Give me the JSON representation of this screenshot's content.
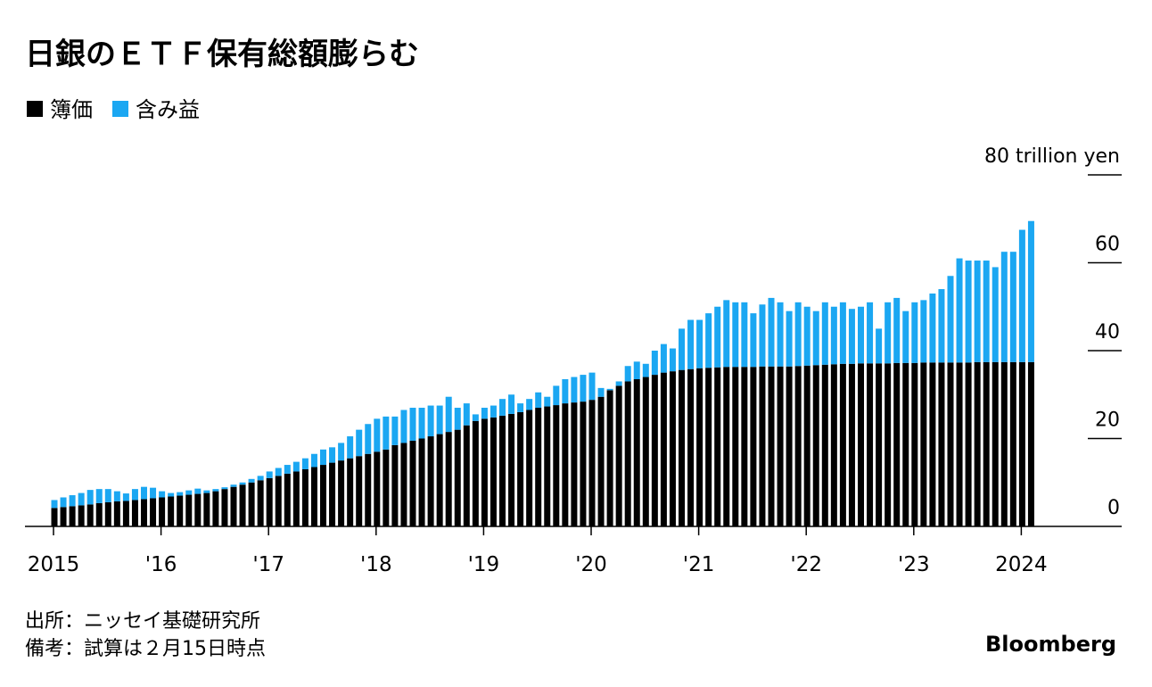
{
  "chart_data": {
    "type": "stacked_bar",
    "title": "日銀のＥＴＦ保有総額膨らむ",
    "notes": [
      "出所：ニッセイ基礎研究所",
      "備考：試算は２月15日時点"
    ],
    "source": "Bloomberg",
    "categories": [
      "2015",
      null,
      null,
      null,
      null,
      null,
      null,
      null,
      null,
      null,
      null,
      null,
      "'16",
      null,
      null,
      null,
      null,
      null,
      null,
      null,
      null,
      null,
      null,
      null,
      "'17",
      null,
      null,
      null,
      null,
      null,
      null,
      null,
      null,
      null,
      null,
      null,
      "'18",
      null,
      null,
      null,
      null,
      null,
      null,
      null,
      null,
      null,
      null,
      null,
      "'19",
      null,
      null,
      null,
      null,
      null,
      null,
      null,
      null,
      null,
      null,
      null,
      "'20",
      null,
      null,
      null,
      null,
      null,
      null,
      null,
      null,
      null,
      null,
      null,
      "'21",
      null,
      null,
      null,
      null,
      null,
      null,
      null,
      null,
      null,
      null,
      null,
      "'22",
      null,
      null,
      null,
      null,
      null,
      null,
      null,
      null,
      null,
      null,
      null,
      "'23",
      null,
      null,
      null,
      null,
      null,
      null,
      null,
      null,
      null,
      null,
      null,
      "2024",
      null
    ],
    "series": [
      {
        "name": "簿価",
        "color": "#000000",
        "values": [
          4.2,
          4.4,
          4.6,
          4.8,
          5.0,
          5.3,
          5.5,
          5.7,
          5.8,
          6.0,
          6.2,
          6.4,
          6.6,
          6.8,
          7.0,
          7.2,
          7.4,
          7.6,
          8.0,
          8.5,
          9.0,
          9.5,
          10.0,
          10.5,
          11.0,
          11.5,
          12.0,
          12.5,
          13.0,
          13.5,
          14.0,
          14.5,
          15.0,
          15.5,
          16.0,
          16.5,
          17.0,
          17.5,
          18.5,
          19.0,
          19.5,
          20.0,
          20.5,
          21.0,
          21.5,
          22.0,
          23.0,
          24.0,
          24.5,
          24.8,
          25.2,
          25.6,
          26.0,
          26.5,
          27.0,
          27.3,
          27.6,
          28.0,
          28.2,
          28.4,
          28.8,
          29.5,
          31.0,
          32.0,
          33.0,
          33.5,
          34.0,
          34.5,
          35.0,
          35.3,
          35.6,
          35.8,
          36.0,
          36.1,
          36.2,
          36.3,
          36.3,
          36.3,
          36.3,
          36.4,
          36.4,
          36.4,
          36.4,
          36.5,
          36.6,
          36.7,
          36.8,
          36.9,
          37.0,
          37.0,
          37.1,
          37.1,
          37.1,
          37.1,
          37.2,
          37.2,
          37.2,
          37.3,
          37.3,
          37.3,
          37.3,
          37.3,
          37.3,
          37.4,
          37.4,
          37.4,
          37.4,
          37.4,
          37.4,
          37.4
        ]
      },
      {
        "name": "含み益",
        "color": "#1ba7f2",
        "values": [
          1.8,
          2.2,
          2.5,
          2.8,
          3.3,
          3.2,
          3.0,
          2.3,
          1.7,
          2.5,
          2.8,
          2.4,
          1.4,
          0.8,
          0.8,
          1.0,
          1.2,
          0.6,
          0.5,
          0.4,
          0.5,
          0.5,
          0.8,
          1.0,
          1.5,
          1.8,
          2.0,
          2.2,
          2.5,
          3.0,
          3.5,
          3.5,
          4.0,
          5.0,
          6.0,
          6.8,
          7.5,
          7.5,
          6.5,
          7.5,
          7.5,
          7.0,
          7.0,
          6.5,
          8.0,
          5.0,
          5.0,
          1.5,
          2.5,
          2.7,
          3.8,
          4.4,
          2.0,
          2.5,
          3.5,
          2.2,
          4.4,
          5.5,
          5.8,
          6.1,
          6.2,
          2.0,
          0.3,
          1.0,
          3.5,
          4.0,
          3.0,
          5.5,
          6.5,
          5.2,
          9.4,
          11.2,
          11.0,
          12.4,
          13.8,
          15.2,
          14.7,
          14.7,
          12.2,
          14.1,
          15.6,
          14.6,
          12.6,
          14.5,
          13.4,
          12.3,
          14.2,
          13.1,
          14.0,
          12.5,
          12.9,
          13.9,
          7.9,
          13.9,
          14.8,
          11.8,
          13.8,
          14.2,
          15.7,
          16.7,
          19.7,
          23.7,
          23.2,
          23.1,
          23.1,
          21.6,
          25.1,
          25.1,
          30.1,
          32.1
        ]
      }
    ],
    "ylim": [
      0,
      80
    ],
    "yticks": [
      0,
      20,
      40,
      60,
      {
        "value": 80,
        "label": "80 trillion yen"
      }
    ],
    "legend": "top-left"
  }
}
